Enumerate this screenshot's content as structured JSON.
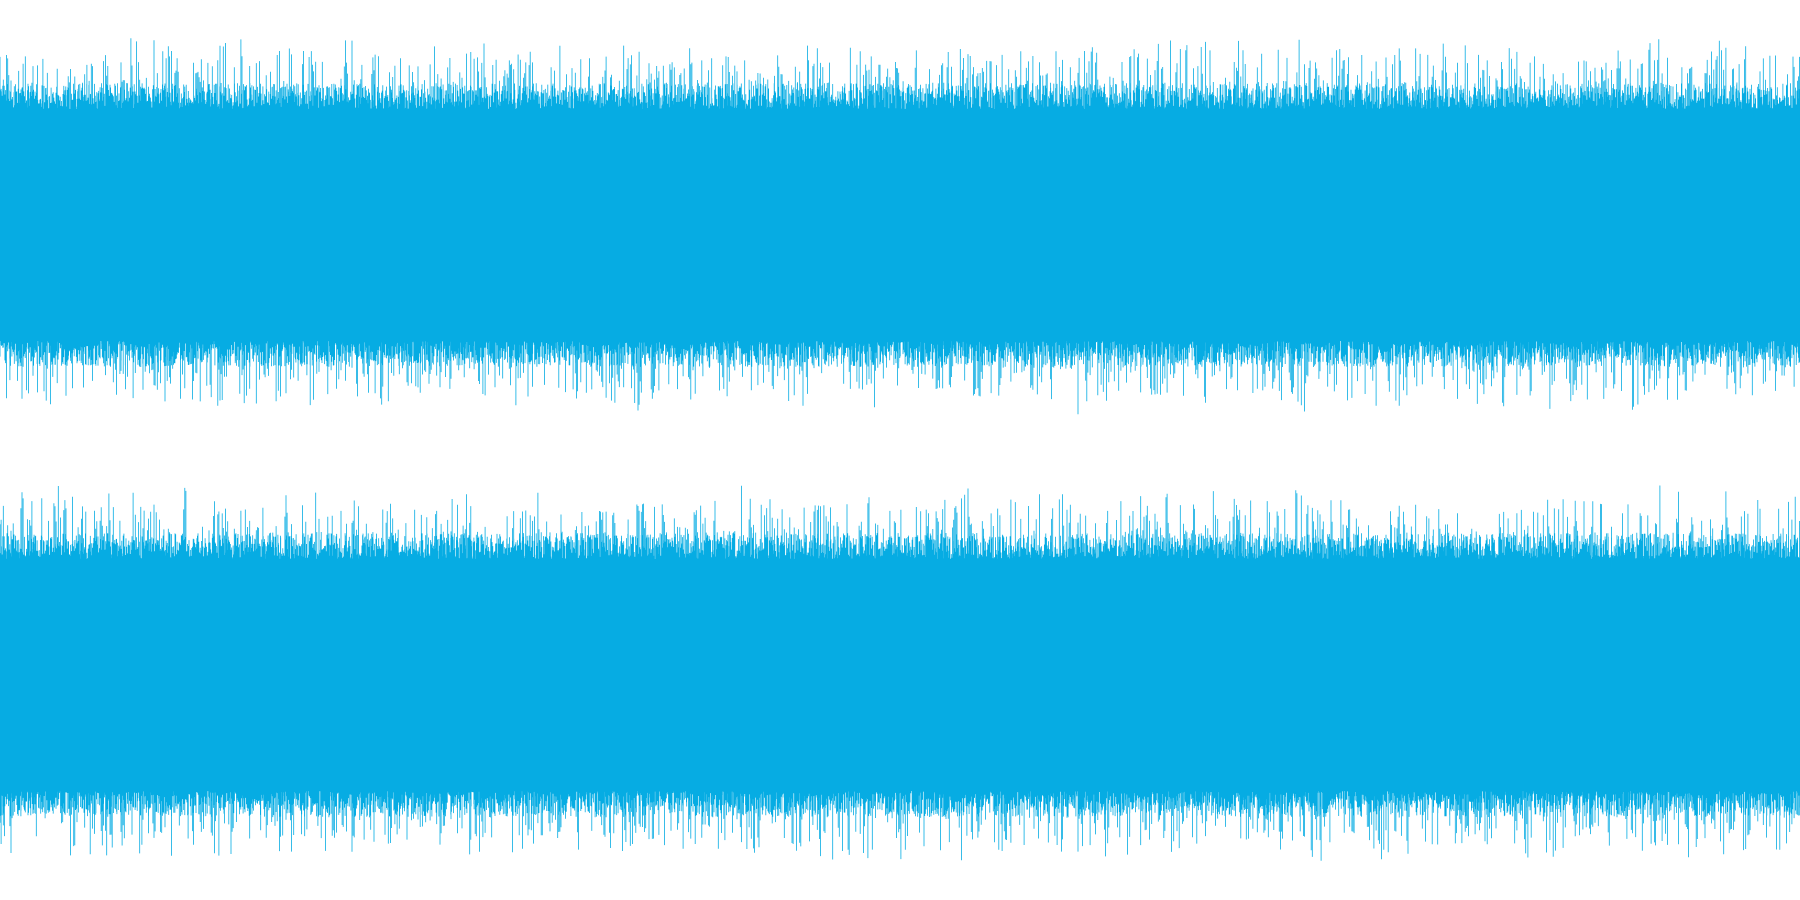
{
  "waveform": {
    "color": "#06ace3",
    "background": "#ffffff",
    "channels": [
      {
        "name": "",
        "core_amplitude": 0.58,
        "peak_amplitude": 0.95
      },
      {
        "name": "",
        "core_amplitude": 0.58,
        "peak_amplitude": 0.95
      }
    ]
  }
}
